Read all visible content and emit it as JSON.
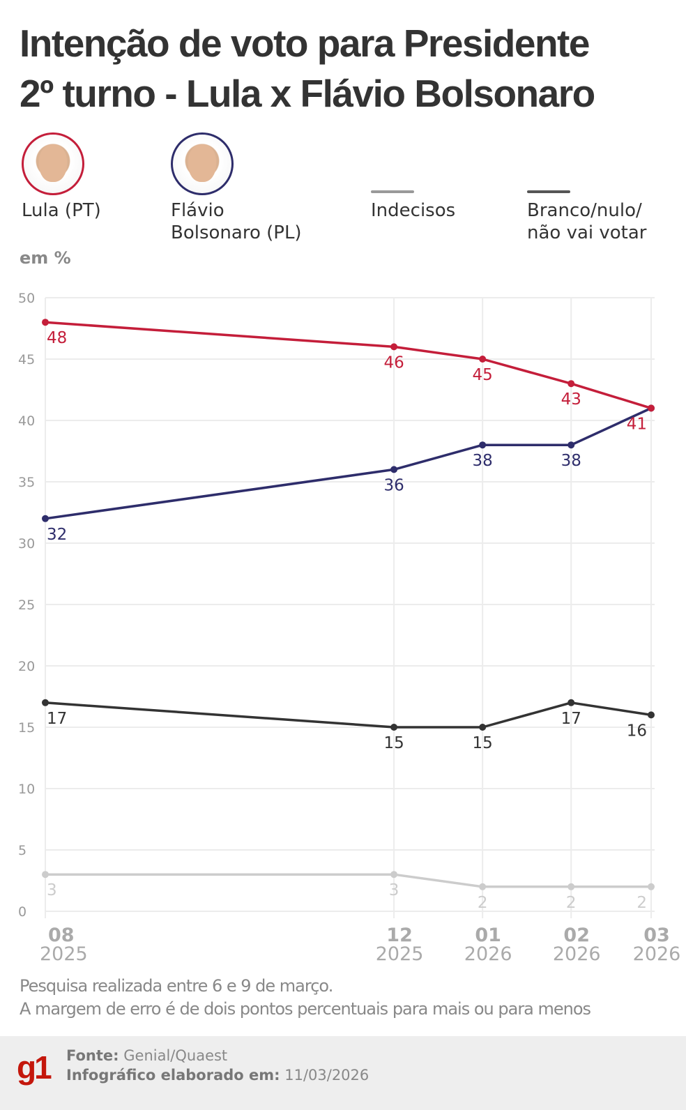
{
  "title": [
    "Intenção de voto para Presidente",
    "2º turno - Lula x Flávio Bolsonaro"
  ],
  "unit_label": "em %",
  "legend": [
    {
      "label": "Lula (PT)",
      "color": "#c41e3a",
      "icon": "candidate-photo"
    },
    {
      "label": "Flávio Bolsonaro (PL)",
      "color": "#2e2d6b",
      "icon": "candidate-photo"
    },
    {
      "label": "Indecisos",
      "color": "#cccccc",
      "icon": "line-swatch"
    },
    {
      "label": "Branco/nulo/ não vai votar",
      "color": "#333333",
      "icon": "line-swatch"
    }
  ],
  "chart_data": {
    "type": "line",
    "x": [
      "2025-08",
      "2025-12",
      "2026-01",
      "2026-02",
      "2026-03"
    ],
    "x_tick_labels": [
      {
        "month": "08",
        "year": "2025"
      },
      {
        "month": "12",
        "year": "2025"
      },
      {
        "month": "01",
        "year": "2026"
      },
      {
        "month": "02",
        "year": "2026"
      },
      {
        "month": "03",
        "year": "2026"
      }
    ],
    "ylim": [
      0,
      50
    ],
    "y_ticks": [
      0,
      5,
      10,
      15,
      20,
      25,
      30,
      35,
      40,
      45,
      50
    ],
    "grid": true,
    "ylabel": "em %",
    "series": [
      {
        "name": "Lula (PT)",
        "color": "#c41e3a",
        "values": [
          48,
          46,
          45,
          43,
          41
        ],
        "labels": [
          48,
          46,
          45,
          43,
          41
        ]
      },
      {
        "name": "Flávio Bolsonaro (PL)",
        "color": "#2e2d6b",
        "values": [
          32,
          36,
          38,
          38,
          41
        ],
        "labels": [
          32,
          36,
          38,
          38,
          null
        ]
      },
      {
        "name": "Branco/nulo/ não vai votar",
        "color": "#333333",
        "values": [
          17,
          15,
          15,
          17,
          16
        ],
        "labels": [
          17,
          15,
          15,
          17,
          16
        ]
      },
      {
        "name": "Indecisos",
        "color": "#cccccc",
        "values": [
          3,
          3,
          2,
          2,
          2
        ],
        "labels": [
          3,
          3,
          2,
          2,
          2
        ]
      }
    ]
  },
  "notes": [
    "Pesquisa realizada entre 6 e 9 de março.",
    "A margem de erro é de dois pontos percentuais para mais ou para menos"
  ],
  "footer": {
    "logo": "g1",
    "source_label": "Fonte:",
    "source": "Genial/Quaest",
    "made_label": "Infográfico elaborado em:",
    "made_date": "11/03/2026"
  }
}
